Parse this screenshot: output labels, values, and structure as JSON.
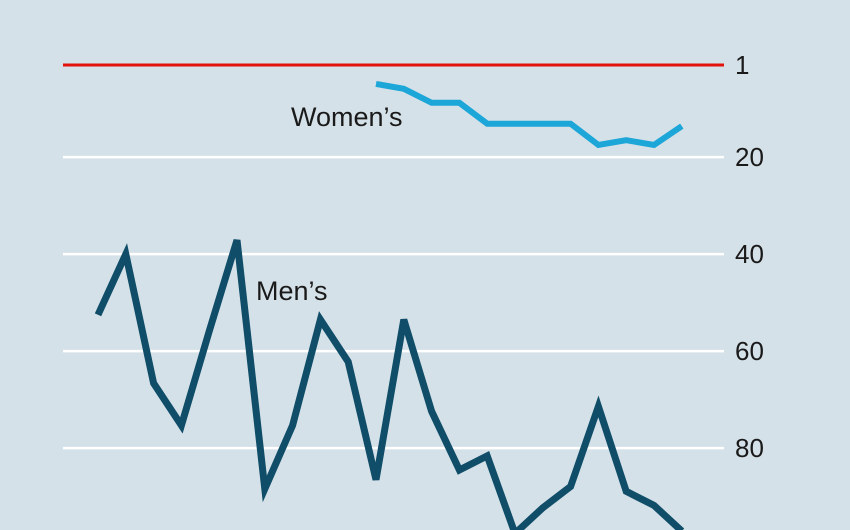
{
  "chart_data": {
    "type": "line",
    "title": "",
    "xlabel": "",
    "ylabel": "",
    "y_axis": {
      "inverted": true,
      "position": "right",
      "ticks": [
        1,
        20,
        40,
        60,
        80
      ]
    },
    "ylim": [
      1,
      95
    ],
    "x_index_range": [
      0,
      24
    ],
    "grid": true,
    "highlight_line": {
      "value": 1,
      "color": "#e3120b"
    },
    "series": [
      {
        "name": "Women’s",
        "color": "#1da6d8",
        "points": [
          [
            10,
            4.9
          ],
          [
            11,
            5.9
          ],
          [
            12,
            8.8
          ],
          [
            13,
            8.8
          ],
          [
            14,
            13.1
          ],
          [
            15,
            13.1
          ],
          [
            16,
            13.1
          ],
          [
            17,
            13.1
          ],
          [
            18,
            17.5
          ],
          [
            19,
            16.5
          ],
          [
            20,
            17.5
          ],
          [
            21,
            13.6
          ]
        ]
      },
      {
        "name": "Men’s",
        "color": "#0f4d68",
        "points": [
          [
            0,
            52.5
          ],
          [
            1,
            40
          ],
          [
            2,
            66.6
          ],
          [
            3,
            75.3
          ],
          [
            4,
            55.9
          ],
          [
            5,
            37.1
          ],
          [
            6,
            88.4
          ],
          [
            7,
            75.3
          ],
          [
            8,
            53.5
          ],
          [
            9,
            62.2
          ],
          [
            10,
            86.5
          ],
          [
            11,
            53.5
          ],
          [
            12,
            72.4
          ],
          [
            13,
            84.5
          ],
          [
            14,
            81.6
          ],
          [
            15,
            97.6
          ],
          [
            16,
            92.3
          ],
          [
            17,
            87.9
          ],
          [
            18,
            71.4
          ],
          [
            19,
            88.9
          ],
          [
            20,
            91.8
          ],
          [
            21,
            97.1
          ]
        ]
      }
    ]
  }
}
